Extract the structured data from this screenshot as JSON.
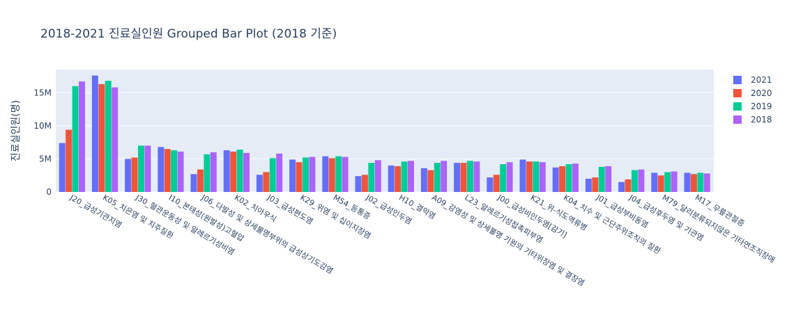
{
  "chart_data": {
    "type": "bar",
    "title": "2018-2021 진료실인원 Grouped Bar Plot (2018 기준)",
    "xlabel": "",
    "ylabel": "진료실인원(명)",
    "ylim": [
      0,
      18500000
    ],
    "yticks": [
      0,
      5000000,
      10000000,
      15000000
    ],
    "ytick_labels": [
      "0",
      "5M",
      "10M",
      "15M"
    ],
    "grid": true,
    "legend_position": "top-right",
    "categories": [
      "J20_급성기관지염",
      "K05_치은염 및 치주질환",
      "J30_혈관운동성 및 알레르기성비염",
      "I10_본태성(원발성)고혈압",
      "J06_다발성 및 상세불명부위의 급성상기도감염",
      "K02_치아우식",
      "J03_급성편도염",
      "K29_위염 및 십이지장염",
      "M54_등통증",
      "J02_급성인두염",
      "H10_결막염",
      "A09_감염성 및 상세불명 기원의 기타위장염 및 결장염",
      "L23_알레르기성접촉피부염",
      "J00_급성비인두염[감기]",
      "K21_위-식도역류병",
      "K04_치수 및 근단주위조직의 질환",
      "J01_급성부비동염",
      "J04_급성후두염 및 기관염",
      "M79_달리분류되지않은 기타연조직장애",
      "M17_무릎관절증"
    ],
    "series": [
      {
        "name": "2021",
        "color": "#636efa",
        "values": [
          7400000,
          17600000,
          5000000,
          6800000,
          2700000,
          6300000,
          2600000,
          4900000,
          5400000,
          2400000,
          4000000,
          3600000,
          4400000,
          2200000,
          4900000,
          3700000,
          2000000,
          1500000,
          2900000,
          2900000
        ]
      },
      {
        "name": "2020",
        "color": "#ef553b",
        "values": [
          9400000,
          16300000,
          5200000,
          6500000,
          3400000,
          6100000,
          3000000,
          4500000,
          5100000,
          2600000,
          3900000,
          3300000,
          4400000,
          2600000,
          4600000,
          3900000,
          2200000,
          1900000,
          2500000,
          2700000
        ]
      },
      {
        "name": "2019",
        "color": "#00cc96",
        "values": [
          16000000,
          16800000,
          7000000,
          6300000,
          5700000,
          6400000,
          5100000,
          5200000,
          5400000,
          4400000,
          4600000,
          4400000,
          4700000,
          4200000,
          4600000,
          4200000,
          3800000,
          3300000,
          3000000,
          2900000
        ]
      },
      {
        "name": "2018",
        "color": "#ab63fa",
        "values": [
          16700000,
          15800000,
          7000000,
          6100000,
          6000000,
          5900000,
          5800000,
          5300000,
          5300000,
          4800000,
          4700000,
          4700000,
          4600000,
          4500000,
          4500000,
          4300000,
          3900000,
          3400000,
          3100000,
          2800000
        ]
      }
    ]
  }
}
